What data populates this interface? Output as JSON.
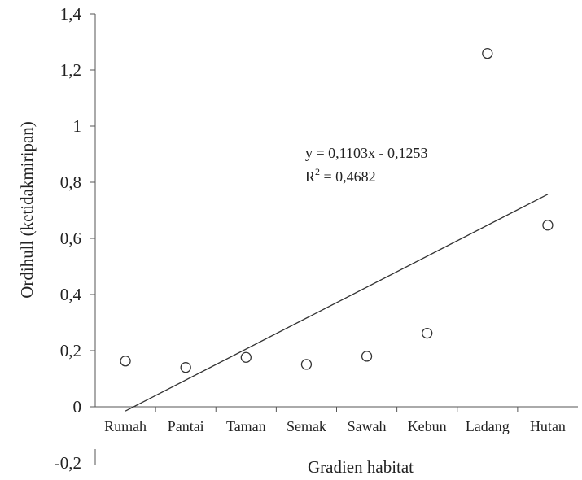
{
  "chart_data": {
    "type": "scatter",
    "xlabel": "Gradien habitat",
    "ylabel": "Ordihull (ketidakmiripan)",
    "categories": [
      "Rumah",
      "Pantai",
      "Taman",
      "Semak",
      "Sawah",
      "Kebun",
      "Ladang",
      "Hutan"
    ],
    "values": [
      0.163,
      0.14,
      0.176,
      0.151,
      0.18,
      0.262,
      1.259,
      0.647
    ],
    "ylim": [
      -0.2,
      1.4
    ],
    "yticks": [
      "-0,2",
      "0",
      "0,2",
      "0,4",
      "0,6",
      "0,8",
      "1",
      "1,2",
      "1,4"
    ],
    "trendline": {
      "slope": 0.1103,
      "intercept": -0.1253,
      "equation": "y = 0,1103x - 0,1253",
      "r2_prefix": "R",
      "r2_sup": "2",
      "r2_value": " = 0,4682"
    },
    "grid": false,
    "legend": false,
    "colors": {
      "axis": "#555555",
      "marker": "#333333",
      "line": "#333333",
      "text": "#222222"
    }
  }
}
